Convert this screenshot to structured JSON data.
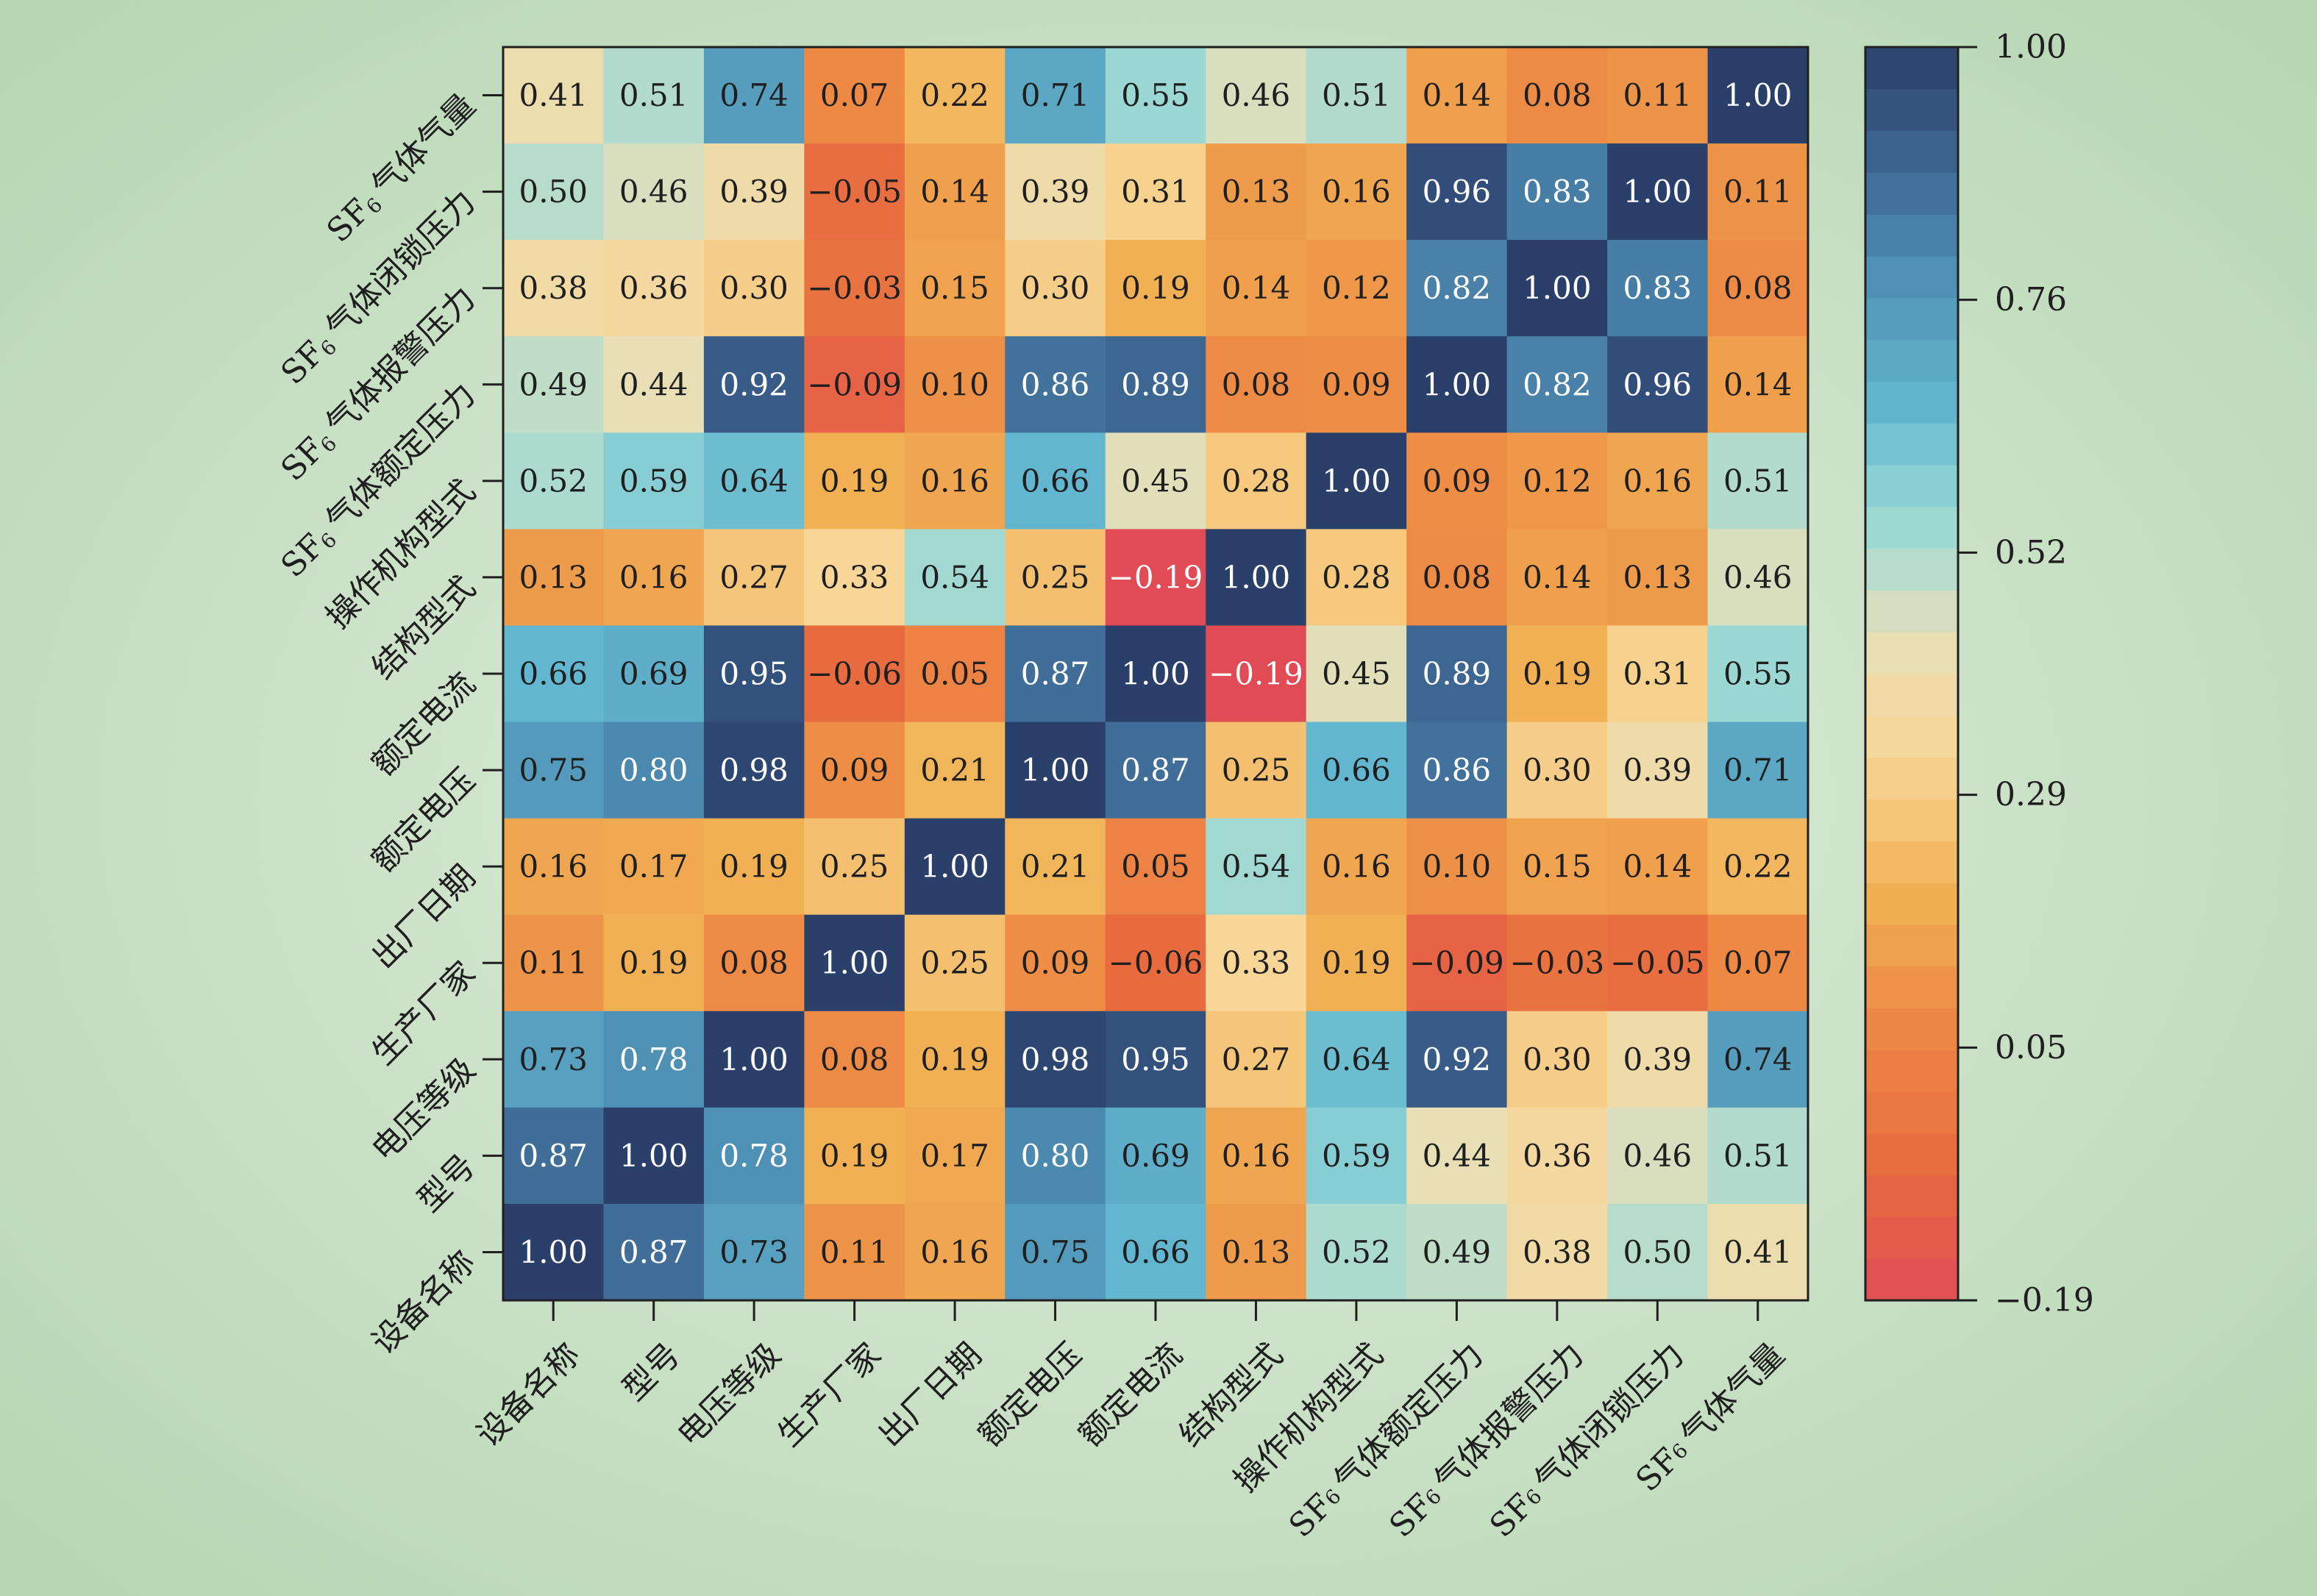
{
  "chart_data": {
    "type": "heatmap",
    "title": "",
    "xlabel": "",
    "ylabel": "",
    "variables": [
      {
        "base": "设备名称",
        "sub": "",
        "tail": ""
      },
      {
        "base": "型号",
        "sub": "",
        "tail": ""
      },
      {
        "base": "电压等级",
        "sub": "",
        "tail": ""
      },
      {
        "base": "生产厂家",
        "sub": "",
        "tail": ""
      },
      {
        "base": "出厂日期",
        "sub": "",
        "tail": ""
      },
      {
        "base": "额定电压",
        "sub": "",
        "tail": ""
      },
      {
        "base": "额定电流",
        "sub": "",
        "tail": ""
      },
      {
        "base": "结构型式",
        "sub": "",
        "tail": ""
      },
      {
        "base": "操作机构型式",
        "sub": "",
        "tail": ""
      },
      {
        "base": "SF",
        "sub": "6",
        "tail": "气体额定压力"
      },
      {
        "base": "SF",
        "sub": "6",
        "tail": "气体报警压力"
      },
      {
        "base": "SF",
        "sub": "6",
        "tail": "气体闭锁压力"
      },
      {
        "base": "SF",
        "sub": "6",
        "tail": "气体气量"
      }
    ],
    "rows_top_to_bottom": [
      12,
      11,
      10,
      9,
      8,
      7,
      6,
      5,
      4,
      3,
      2,
      1,
      0
    ],
    "columns_left_to_right": [
      0,
      1,
      2,
      3,
      4,
      5,
      6,
      7,
      8,
      9,
      10,
      11,
      12
    ],
    "values": [
      [
        0.41,
        0.51,
        0.74,
        0.07,
        0.22,
        0.71,
        0.55,
        0.46,
        0.51,
        0.14,
        0.08,
        0.11,
        1.0
      ],
      [
        0.5,
        0.46,
        0.39,
        -0.05,
        0.14,
        0.39,
        0.31,
        0.13,
        0.16,
        0.96,
        0.83,
        1.0,
        0.11
      ],
      [
        0.38,
        0.36,
        0.3,
        -0.03,
        0.15,
        0.3,
        0.19,
        0.14,
        0.12,
        0.82,
        1.0,
        0.83,
        0.08
      ],
      [
        0.49,
        0.44,
        0.92,
        -0.09,
        0.1,
        0.86,
        0.89,
        0.08,
        0.09,
        1.0,
        0.82,
        0.96,
        0.14
      ],
      [
        0.52,
        0.59,
        0.64,
        0.19,
        0.16,
        0.66,
        0.45,
        0.28,
        1.0,
        0.09,
        0.12,
        0.16,
        0.51
      ],
      [
        0.13,
        0.16,
        0.27,
        0.33,
        0.54,
        0.25,
        -0.19,
        1.0,
        0.28,
        0.08,
        0.14,
        0.13,
        0.46
      ],
      [
        0.66,
        0.69,
        0.95,
        -0.06,
        0.05,
        0.87,
        1.0,
        -0.19,
        0.45,
        0.89,
        0.19,
        0.31,
        0.55
      ],
      [
        0.75,
        0.8,
        0.98,
        0.09,
        0.21,
        1.0,
        0.87,
        0.25,
        0.66,
        0.86,
        0.3,
        0.39,
        0.71
      ],
      [
        0.16,
        0.17,
        0.19,
        0.25,
        1.0,
        0.21,
        0.05,
        0.54,
        0.16,
        0.1,
        0.15,
        0.14,
        0.22
      ],
      [
        0.11,
        0.19,
        0.08,
        1.0,
        0.25,
        0.09,
        -0.06,
        0.33,
        0.19,
        -0.09,
        -0.03,
        -0.05,
        0.07
      ],
      [
        0.73,
        0.78,
        1.0,
        0.08,
        0.19,
        0.98,
        0.95,
        0.27,
        0.64,
        0.92,
        0.3,
        0.39,
        0.74
      ],
      [
        0.87,
        1.0,
        0.78,
        0.19,
        0.17,
        0.8,
        0.69,
        0.16,
        0.59,
        0.44,
        0.36,
        0.46,
        0.51
      ],
      [
        1.0,
        0.87,
        0.73,
        0.11,
        0.16,
        0.75,
        0.66,
        0.13,
        0.52,
        0.49,
        0.38,
        0.5,
        0.41
      ]
    ],
    "value_range": [
      -0.19,
      1.0
    ],
    "colorbar": {
      "ticks": [
        -0.19,
        0.05,
        0.29,
        0.52,
        0.76,
        1.0
      ],
      "tick_labels": [
        "−0.19",
        "0.05",
        "0.29",
        "0.52",
        "0.76",
        "1.00"
      ],
      "steps": 30,
      "placement": "right"
    },
    "colormap_stops": [
      {
        "v": -0.19,
        "color": "#e04b55"
      },
      {
        "v": -0.06,
        "color": "#e86b40"
      },
      {
        "v": 0.08,
        "color": "#ed8a45"
      },
      {
        "v": 0.2,
        "color": "#f2b355"
      },
      {
        "v": 0.33,
        "color": "#f8d698"
      },
      {
        "v": 0.44,
        "color": "#e8dfb7"
      },
      {
        "v": 0.5,
        "color": "#b8dccb"
      },
      {
        "v": 0.56,
        "color": "#95d7d6"
      },
      {
        "v": 0.66,
        "color": "#63b6cf"
      },
      {
        "v": 0.78,
        "color": "#4f91b5"
      },
      {
        "v": 0.88,
        "color": "#3f6a95"
      },
      {
        "v": 1.0,
        "color": "#2b3f6b"
      }
    ],
    "text_colors": {
      "dark": "#1f1f1f",
      "light": "#ffffff"
    },
    "grid": false,
    "legend": "colorbar-right"
  }
}
